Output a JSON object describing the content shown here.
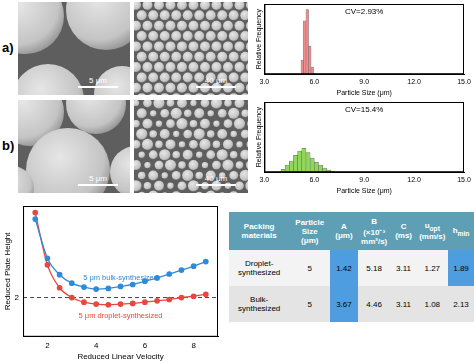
{
  "panel_labels": [
    "a)",
    "b)"
  ],
  "sem_images": [
    {
      "scale_bars": [
        "5 μm",
        "40 μm"
      ]
    },
    {
      "scale_bars": [
        "5 μm",
        "40 μm"
      ]
    }
  ],
  "chart_data": [
    {
      "type": "histogram",
      "annotation": "CV=2.93%",
      "x_label": "Particle Size (μm)",
      "y_label": "Relative Frequency",
      "bins": [
        5.2,
        5.35,
        5.5,
        5.65,
        5.8,
        5.95
      ],
      "counts": [
        0.1,
        0.38,
        0.46,
        0.2,
        0.05
      ],
      "color": "#f28b8b",
      "xlim": [
        3,
        15
      ],
      "xticks": [
        {
          "value": 3,
          "label": "3.0"
        },
        {
          "value": 6,
          "label": "6.0"
        },
        {
          "value": 9,
          "label": "9.0"
        },
        {
          "value": 12,
          "label": "12.0"
        },
        {
          "value": 15,
          "label": "15.0"
        }
      ],
      "ylim": [
        0,
        0.5
      ],
      "tick_labels": "x",
      "grid": false
    },
    {
      "type": "histogram",
      "annotation": "CV=15.4%",
      "x_label": "Particle Size (μm)",
      "y_label": "Relative Frequency",
      "bins": [
        4.0,
        4.25,
        4.5,
        4.75,
        5.0,
        5.25,
        5.5,
        5.75,
        6.0,
        6.25,
        6.5,
        6.75,
        7.0,
        7.25
      ],
      "counts": [
        0.02,
        0.05,
        0.08,
        0.12,
        0.15,
        0.17,
        0.14,
        0.1,
        0.07,
        0.05,
        0.03,
        0.015,
        0.005
      ],
      "color": "#8fd65a",
      "xlim": [
        3,
        15
      ],
      "xticks": [
        {
          "value": 3,
          "label": "3.0"
        },
        {
          "value": 6,
          "label": "6.0"
        },
        {
          "value": 9,
          "label": "9.0"
        },
        {
          "value": 12,
          "label": "12.0"
        },
        {
          "value": 15,
          "label": "15.0"
        }
      ],
      "ylim": [
        0,
        0.5
      ],
      "tick_labels": "x",
      "grid": false
    },
    {
      "type": "line",
      "x_label": "Reduced Linear Velocity",
      "y_label": "Reduced Plate Height",
      "x": [
        1.5,
        2,
        2.5,
        3,
        3.5,
        4,
        4.5,
        5,
        5.5,
        6,
        6.5,
        7,
        7.5,
        8,
        8.5
      ],
      "series": [
        {
          "name": "5 μm bulk-synthesized",
          "color": "#2f8ad8",
          "marker": "circle",
          "values": [
            3.2,
            2.6,
            2.35,
            2.22,
            2.16,
            2.13,
            2.14,
            2.17,
            2.2,
            2.25,
            2.3,
            2.36,
            2.42,
            2.48,
            2.55
          ]
        },
        {
          "name": "5 μm droplet-synthesized",
          "color": "#e8473f",
          "marker": "circle",
          "values": [
            3.3,
            2.5,
            2.15,
            2.0,
            1.93,
            1.9,
            1.89,
            1.9,
            1.91,
            1.93,
            1.95,
            1.97,
            2.0,
            2.02,
            2.05
          ]
        }
      ],
      "xlim": [
        1,
        9
      ],
      "xticks": [
        2,
        4,
        6,
        8
      ],
      "ylim": [
        1.4,
        3.4
      ],
      "yticks": [
        2
      ],
      "grid": "y",
      "tick_labels": true
    }
  ],
  "table": {
    "header": [
      {
        "text": "Packing materials"
      },
      {
        "text": "Particle Size",
        "unit": "(μm)"
      },
      {
        "text": "A",
        "unit": "(μm)"
      },
      {
        "text": "B",
        "unit": "(×10⁻³ mm²/s)"
      },
      {
        "text": "C",
        "unit": "(ms)"
      },
      {
        "text": "u",
        "sub": "opt",
        "unit": "(mm/s)"
      },
      {
        "text": "h",
        "sub": "min"
      }
    ],
    "rows": [
      [
        "Droplet-synthesized",
        5,
        1.42,
        5.18,
        3.11,
        1.27,
        1.89
      ],
      [
        "Bulk-synthesized",
        5,
        3.67,
        4.46,
        3.11,
        1.08,
        2.13
      ]
    ]
  }
}
